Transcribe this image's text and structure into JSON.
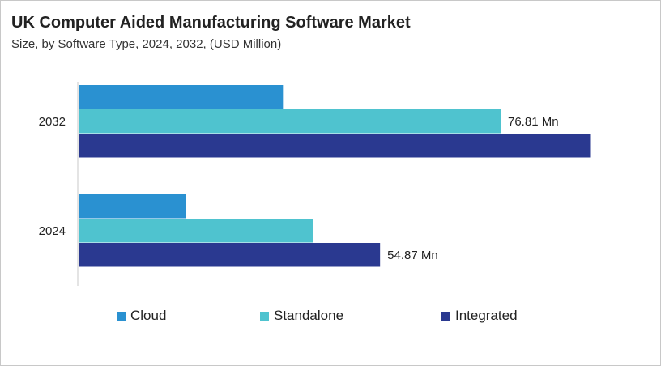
{
  "chart_data": {
    "type": "bar",
    "orientation": "horizontal",
    "title": "UK Computer Aided Manufacturing Software Market",
    "subtitle": "Size, by Software Type, 2024, 2032, (USD Million)",
    "categories": [
      "2032",
      "2024"
    ],
    "series": [
      {
        "name": "Cloud",
        "color": "#2a91d1",
        "values": [
          37.2,
          19.6
        ]
      },
      {
        "name": "Standalone",
        "color": "#4fc3cf",
        "values": [
          76.81,
          42.7
        ]
      },
      {
        "name": "Integrated",
        "color": "#2a3990",
        "values": [
          93.1,
          54.87
        ]
      }
    ],
    "data_labels": [
      {
        "category": "2032",
        "series": "Standalone",
        "text": "76.81 Mn"
      },
      {
        "category": "2024",
        "series": "Integrated",
        "text": "54.87 Mn"
      }
    ],
    "xlim": [
      0,
      110
    ],
    "grid": false,
    "legend_position": "bottom"
  }
}
